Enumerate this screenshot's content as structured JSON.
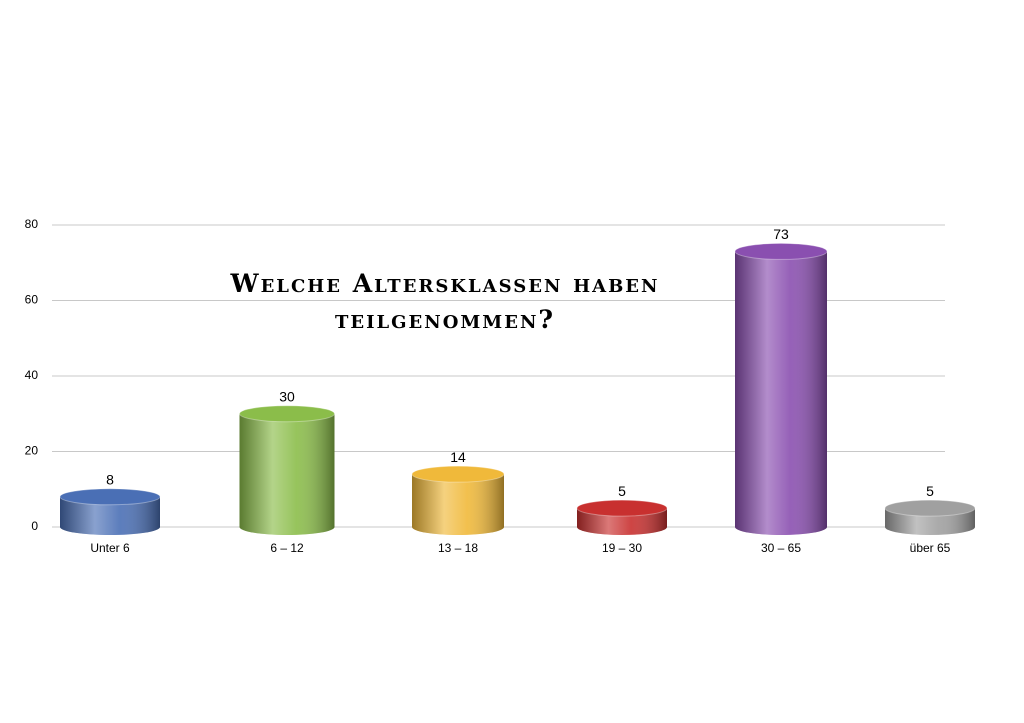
{
  "chart_data": {
    "type": "bar",
    "title": "Welche Altersklassen haben teilgenommen?",
    "categories": [
      "Unter 6",
      "6 – 12",
      "13 – 18",
      "19 – 30",
      "30 – 65",
      "über 65"
    ],
    "values": [
      8,
      30,
      14,
      5,
      73,
      5
    ],
    "colors": [
      "#4a6fb5",
      "#8bbd4a",
      "#f0b93a",
      "#c8302f",
      "#8a4fb0",
      "#a0a0a0"
    ],
    "ylim": [
      0,
      80
    ],
    "yticks": [
      0,
      20,
      40,
      60,
      80
    ],
    "grid": true
  }
}
